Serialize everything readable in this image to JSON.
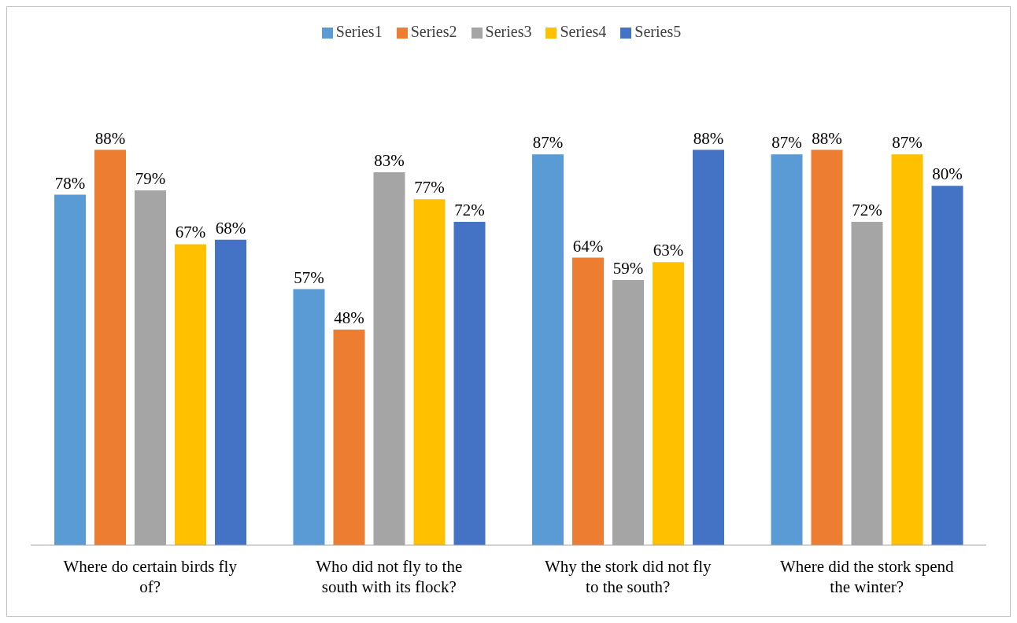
{
  "chart_data": {
    "type": "bar",
    "categories": [
      "Where do certain birds fly of?",
      "Who did not fly to the south with its flock?",
      "Why the stork did not fly to the south?",
      "Where did the stork spend the winter?"
    ],
    "series": [
      {
        "name": "Series1",
        "color": "#5b9bd5",
        "values": [
          78,
          57,
          87,
          87
        ],
        "value_labels": [
          "78%",
          "57%",
          "87%",
          "87%"
        ]
      },
      {
        "name": "Series2",
        "color": "#ed7d31",
        "values": [
          88,
          48,
          64,
          88
        ],
        "value_labels": [
          "88%",
          "48%",
          "64%",
          "88%"
        ]
      },
      {
        "name": "Series3",
        "color": "#a5a5a5",
        "values": [
          79,
          83,
          59,
          72
        ],
        "value_labels": [
          "79%",
          "83%",
          "59%",
          "72%"
        ]
      },
      {
        "name": "Series4",
        "color": "#ffc000",
        "values": [
          67,
          77,
          63,
          87
        ],
        "value_labels": [
          "67%",
          "77%",
          "63%",
          "87%"
        ]
      },
      {
        "name": "Series5",
        "color": "#4472c4",
        "values": [
          68,
          72,
          88,
          80
        ],
        "value_labels": [
          "68%",
          "72%",
          "88%",
          "80%"
        ]
      }
    ],
    "legend": "top",
    "grid": false
  }
}
